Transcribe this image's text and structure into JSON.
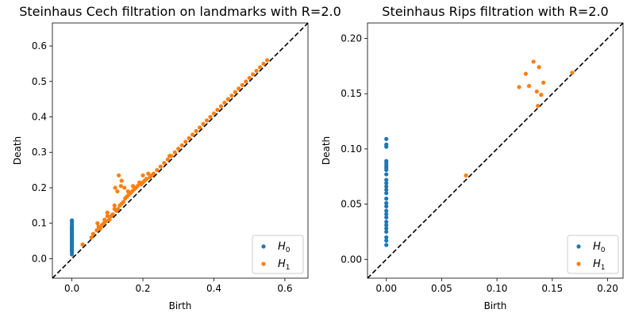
{
  "chart_data": [
    {
      "type": "scatter",
      "title": "Steinhaus Cech filtration on landmarks with R=2.0",
      "xlabel": "Birth",
      "ylabel": "Death",
      "xlim": [
        -0.055,
        0.665
      ],
      "ylim": [
        -0.055,
        0.665
      ],
      "xticks": [
        0.0,
        0.2,
        0.4,
        0.6
      ],
      "yticks": [
        0.0,
        0.1,
        0.2,
        0.3,
        0.4,
        0.5,
        0.6
      ],
      "tick_decimals": 1,
      "diagonal": true,
      "legend_position": "bottom-right",
      "series": [
        {
          "name": "H0",
          "label_main": "H",
          "label_sub": "0",
          "color": "#1f77b4",
          "points": [
            [
              0,
              0.012
            ],
            [
              0,
              0.018
            ],
            [
              0,
              0.022
            ],
            [
              0,
              0.025
            ],
            [
              0,
              0.028
            ],
            [
              0,
              0.032
            ],
            [
              0,
              0.035
            ],
            [
              0,
              0.038
            ],
            [
              0,
              0.041
            ],
            [
              0,
              0.044
            ],
            [
              0,
              0.047
            ],
            [
              0,
              0.05
            ],
            [
              0,
              0.053
            ],
            [
              0,
              0.056
            ],
            [
              0,
              0.059
            ],
            [
              0,
              0.062
            ],
            [
              0,
              0.065
            ],
            [
              0,
              0.068
            ],
            [
              0,
              0.071
            ],
            [
              0,
              0.074
            ],
            [
              0,
              0.077
            ],
            [
              0,
              0.08
            ],
            [
              0,
              0.083
            ],
            [
              0,
              0.086
            ],
            [
              0,
              0.089
            ],
            [
              0,
              0.092
            ],
            [
              0,
              0.098
            ],
            [
              0,
              0.104
            ],
            [
              0,
              0.108
            ]
          ]
        },
        {
          "name": "H1",
          "label_main": "H",
          "label_sub": "1",
          "color": "#ff7f0e",
          "points": [
            [
              0.03,
              0.04
            ],
            [
              0.055,
              0.06
            ],
            [
              0.06,
              0.07
            ],
            [
              0.07,
              0.08
            ],
            [
              0.072,
              0.1
            ],
            [
              0.075,
              0.09
            ],
            [
              0.08,
              0.085
            ],
            [
              0.085,
              0.095
            ],
            [
              0.09,
              0.1
            ],
            [
              0.092,
              0.11
            ],
            [
              0.095,
              0.105
            ],
            [
              0.1,
              0.12
            ],
            [
              0.1,
              0.13
            ],
            [
              0.105,
              0.11
            ],
            [
              0.11,
              0.12
            ],
            [
              0.115,
              0.125
            ],
            [
              0.12,
              0.15
            ],
            [
              0.12,
              0.14
            ],
            [
              0.122,
              0.2
            ],
            [
              0.125,
              0.135
            ],
            [
              0.128,
              0.19
            ],
            [
              0.13,
              0.14
            ],
            [
              0.132,
              0.235
            ],
            [
              0.135,
              0.15
            ],
            [
              0.138,
              0.205
            ],
            [
              0.14,
              0.155
            ],
            [
              0.14,
              0.22
            ],
            [
              0.145,
              0.16
            ],
            [
              0.148,
              0.2
            ],
            [
              0.15,
              0.17
            ],
            [
              0.155,
              0.175
            ],
            [
              0.158,
              0.19
            ],
            [
              0.16,
              0.18
            ],
            [
              0.165,
              0.185
            ],
            [
              0.17,
              0.19
            ],
            [
              0.172,
              0.205
            ],
            [
              0.175,
              0.195
            ],
            [
              0.18,
              0.2
            ],
            [
              0.185,
              0.205
            ],
            [
              0.19,
              0.215
            ],
            [
              0.195,
              0.21
            ],
            [
              0.2,
              0.215
            ],
            [
              0.2,
              0.235
            ],
            [
              0.205,
              0.22
            ],
            [
              0.21,
              0.225
            ],
            [
              0.215,
              0.24
            ],
            [
              0.22,
              0.23
            ],
            [
              0.225,
              0.235
            ],
            [
              0.23,
              0.24
            ],
            [
              0.24,
              0.25
            ],
            [
              0.25,
              0.26
            ],
            [
              0.26,
              0.27
            ],
            [
              0.27,
              0.28
            ],
            [
              0.275,
              0.29
            ],
            [
              0.28,
              0.29
            ],
            [
              0.29,
              0.3
            ],
            [
              0.3,
              0.31
            ],
            [
              0.31,
              0.32
            ],
            [
              0.32,
              0.33
            ],
            [
              0.33,
              0.34
            ],
            [
              0.34,
              0.35
            ],
            [
              0.35,
              0.36
            ],
            [
              0.36,
              0.37
            ],
            [
              0.37,
              0.38
            ],
            [
              0.38,
              0.39
            ],
            [
              0.39,
              0.4
            ],
            [
              0.4,
              0.41
            ],
            [
              0.41,
              0.42
            ],
            [
              0.42,
              0.43
            ],
            [
              0.43,
              0.44
            ],
            [
              0.44,
              0.45
            ],
            [
              0.45,
              0.46
            ],
            [
              0.46,
              0.47
            ],
            [
              0.47,
              0.48
            ],
            [
              0.48,
              0.49
            ],
            [
              0.49,
              0.5
            ],
            [
              0.5,
              0.51
            ],
            [
              0.51,
              0.52
            ],
            [
              0.52,
              0.53
            ],
            [
              0.53,
              0.54
            ],
            [
              0.54,
              0.55
            ],
            [
              0.55,
              0.56
            ]
          ]
        }
      ]
    },
    {
      "type": "scatter",
      "title": "Steinhaus Rips filtration with R=2.0",
      "xlabel": "Birth",
      "ylabel": "Death",
      "xlim": [
        -0.017,
        0.214
      ],
      "ylim": [
        -0.017,
        0.214
      ],
      "xticks": [
        0.0,
        0.05,
        0.1,
        0.15,
        0.2
      ],
      "yticks": [
        0.0,
        0.05,
        0.1,
        0.15,
        0.2
      ],
      "tick_decimals": 2,
      "diagonal": true,
      "legend_position": "bottom-right",
      "series": [
        {
          "name": "H0",
          "label_main": "H",
          "label_sub": "0",
          "color": "#1f77b4",
          "points": [
            [
              0,
              0.013
            ],
            [
              0,
              0.017
            ],
            [
              0,
              0.02
            ],
            [
              0,
              0.025
            ],
            [
              0,
              0.028
            ],
            [
              0,
              0.031
            ],
            [
              0,
              0.034
            ],
            [
              0,
              0.038
            ],
            [
              0,
              0.041
            ],
            [
              0,
              0.044
            ],
            [
              0,
              0.048
            ],
            [
              0,
              0.051
            ],
            [
              0,
              0.055
            ],
            [
              0,
              0.06
            ],
            [
              0,
              0.063
            ],
            [
              0,
              0.066
            ],
            [
              0,
              0.069
            ],
            [
              0,
              0.072
            ],
            [
              0,
              0.077
            ],
            [
              0,
              0.081
            ],
            [
              0,
              0.083
            ],
            [
              0,
              0.085
            ],
            [
              0,
              0.087
            ],
            [
              0,
              0.089
            ],
            [
              0,
              0.102
            ],
            [
              0,
              0.104
            ],
            [
              0,
              0.109
            ]
          ]
        },
        {
          "name": "H1",
          "label_main": "H",
          "label_sub": "1",
          "color": "#ff7f0e",
          "points": [
            [
              0.072,
              0.076
            ],
            [
              0.12,
              0.156
            ],
            [
              0.126,
              0.168
            ],
            [
              0.129,
              0.157
            ],
            [
              0.133,
              0.179
            ],
            [
              0.136,
              0.152
            ],
            [
              0.137,
              0.139
            ],
            [
              0.138,
              0.174
            ],
            [
              0.14,
              0.149
            ],
            [
              0.142,
              0.16
            ],
            [
              0.168,
              0.169
            ]
          ]
        }
      ]
    }
  ]
}
